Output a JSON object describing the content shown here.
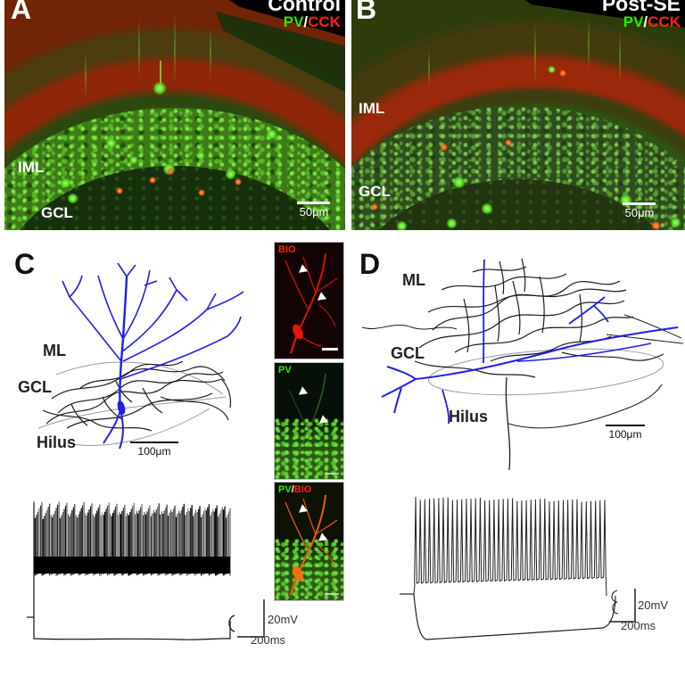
{
  "panels": {
    "a": {
      "letter": "A",
      "condition": "Control",
      "stain_green": "PV",
      "stain_slash": "/",
      "stain_red": "CCK",
      "label_iml": "IML",
      "label_gcl": "GCL",
      "scale": "50μm"
    },
    "b": {
      "letter": "B",
      "condition": "Post-SE",
      "stain_green": "PV",
      "stain_slash": "/",
      "stain_red": "CCK",
      "label_iml": "IML",
      "label_gcl": "GCL",
      "scale": "50μm"
    },
    "c": {
      "letter": "C",
      "label_ml": "ML",
      "label_gcl": "GCL",
      "label_hilus": "Hilus",
      "scale": "100μm"
    },
    "d": {
      "letter": "D",
      "label_ml": "ML",
      "label_gcl": "GCL",
      "label_hilus": "Hilus",
      "scale": "100μm"
    }
  },
  "insets": {
    "bio": {
      "label": "BIO"
    },
    "pv": {
      "label": "PV"
    },
    "merge": {
      "green": "PV",
      "slash": "/",
      "red": "BIO"
    }
  },
  "traces": {
    "c": {
      "scale_v": "20mV",
      "scale_t": "200ms",
      "pattern": "dense fast-spiking train with hyperpolarizing step",
      "spike_lines": 150
    },
    "d": {
      "scale_v": "20mV",
      "scale_t": "200ms",
      "pattern": "regular adapting spike train with hyperpolarizing sag",
      "spike_count": 42
    }
  },
  "colors": {
    "pv_green": "#2ee800",
    "cck_red": "#ff2410",
    "dendrite_blue": "#1f1fe8",
    "trace": "#222222"
  }
}
